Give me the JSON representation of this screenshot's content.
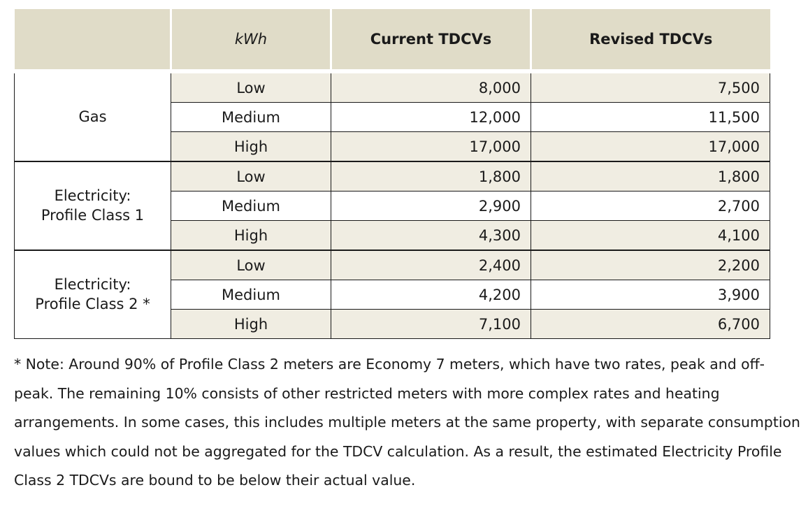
{
  "table": {
    "headers": {
      "blank": "",
      "kwh": "kWh",
      "current": "Current TDCVs",
      "revised": "Revised TDCVs"
    },
    "groups": [
      {
        "label_lines": [
          "Gas"
        ],
        "rows": [
          {
            "band": "Low",
            "current": "8,000",
            "revised": "7,500"
          },
          {
            "band": "Medium",
            "current": "12,000",
            "revised": "11,500"
          },
          {
            "band": "High",
            "current": "17,000",
            "revised": "17,000"
          }
        ]
      },
      {
        "label_lines": [
          "Electricity:",
          "Profile Class 1"
        ],
        "rows": [
          {
            "band": "Low",
            "current": "1,800",
            "revised": "1,800"
          },
          {
            "band": "Medium",
            "current": "2,900",
            "revised": "2,700"
          },
          {
            "band": "High",
            "current": "4,300",
            "revised": "4,100"
          }
        ]
      },
      {
        "label_lines": [
          "Electricity:",
          "Profile Class 2 *"
        ],
        "rows": [
          {
            "band": "Low",
            "current": "2,400",
            "revised": "2,200"
          },
          {
            "band": "Medium",
            "current": "4,200",
            "revised": "3,900"
          },
          {
            "band": "High",
            "current": "7,100",
            "revised": "6,700"
          }
        ]
      }
    ]
  },
  "note": "* Note: Around 90% of Profile Class 2 meters are Economy 7 meters, which have two rates, peak and off-peak. The remaining 10% consists of other restricted meters with more complex rates and heating arrangements. In some cases, this includes multiple meters at the same property, with separate consumption values which could not be aggregated for the TDCV calculation. As a result, the estimated Electricity Profile Class 2 TDCVs are bound to be below their actual value.",
  "colors": {
    "header_bg": "#e0dcc8",
    "row_shade": "#f0ede2",
    "border": "#1a1a1a"
  }
}
